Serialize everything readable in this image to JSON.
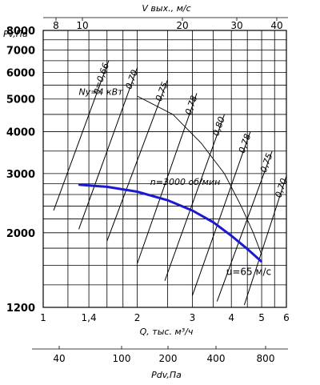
{
  "chart_data": {
    "type": "line",
    "axis_top": {
      "label": "V вых., м/с",
      "ticks": [
        8,
        10,
        20,
        30,
        40
      ]
    },
    "axis_left": {
      "label": "Pv,Па",
      "ticks": [
        1200,
        2000,
        3000,
        4000,
        5000,
        6000,
        7000,
        8000
      ]
    },
    "axis_bottom": {
      "label": "Q, тыс. м³/ч",
      "ticks": [
        "1",
        "1,4",
        "2",
        "3",
        "4",
        "5",
        "6"
      ],
      "tick_values": [
        1,
        1.4,
        2,
        3,
        4,
        5,
        6
      ]
    },
    "axis_bottom2": {
      "label": "Pdv,Па",
      "ticks": [
        40,
        100,
        200,
        400,
        800
      ]
    },
    "xlim": [
      1,
      6
    ],
    "ylim": [
      1200,
      8000
    ],
    "scale": "log-log",
    "grid": true,
    "pressure_curve": {
      "label": "n=3000 об/мин",
      "x": [
        1.3,
        1.6,
        2.0,
        2.5,
        3.0,
        3.5,
        4.0,
        4.5,
        5.0
      ],
      "y": [
        2780,
        2740,
        2650,
        2500,
        2330,
        2150,
        1960,
        1790,
        1640
      ]
    },
    "power_line": {
      "label": "Nу=4 кВт",
      "x": [
        2.0,
        2.6,
        3.2,
        3.8,
        4.3,
        4.7,
        5.0
      ],
      "y": [
        5100,
        4500,
        3700,
        3000,
        2400,
        2000,
        1720
      ]
    },
    "velocity_label": "u=65 м/с",
    "efficiency_lines": [
      {
        "label": "η=0,66",
        "x": [
          1.08,
          1.62
        ],
        "y": [
          2330,
          6500
        ]
      },
      {
        "label": "0,70",
        "x": [
          1.3,
          2.0
        ],
        "y": [
          2050,
          6200
        ]
      },
      {
        "label": "0,75",
        "x": [
          1.6,
          2.5
        ],
        "y": [
          1890,
          5700
        ]
      },
      {
        "label": "0,78",
        "x": [
          2.0,
          3.1
        ],
        "y": [
          1620,
          5200
        ]
      },
      {
        "label": "0,80",
        "x": [
          2.45,
          3.8
        ],
        "y": [
          1440,
          4500
        ]
      },
      {
        "label": "0,78",
        "x": [
          3.0,
          4.6
        ],
        "y": [
          1300,
          4000
        ]
      },
      {
        "label": "0,75",
        "x": [
          3.6,
          5.4
        ],
        "y": [
          1250,
          3500
        ]
      },
      {
        "label": "0,70",
        "x": [
          4.4,
          6.0
        ],
        "y": [
          1220,
          2950
        ]
      }
    ]
  }
}
